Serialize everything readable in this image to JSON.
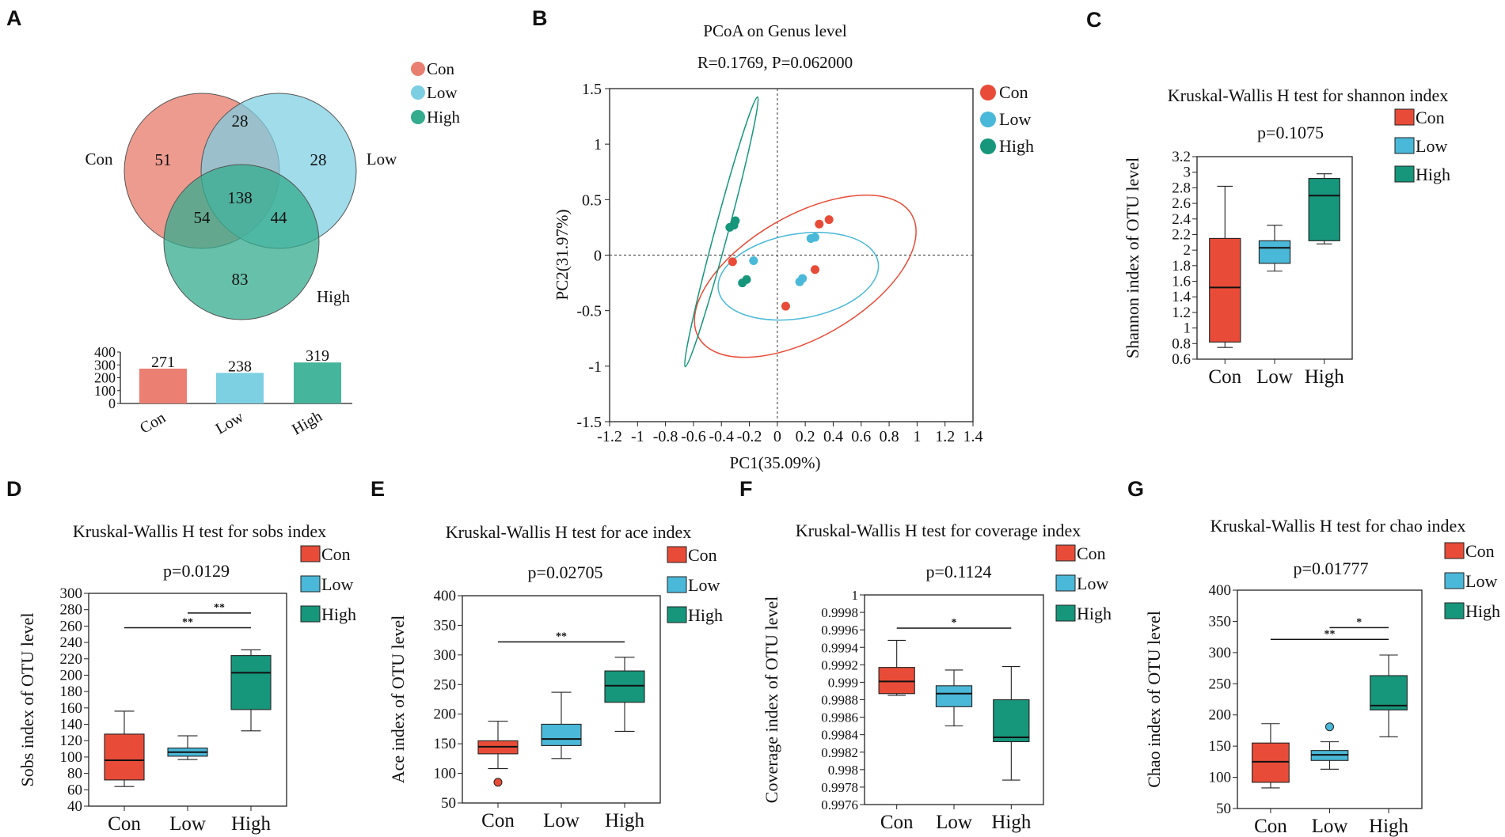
{
  "colors": {
    "con": "#e84c38",
    "low": "#4ab8d8",
    "high": "#16967a",
    "venn_con": "#e97f70",
    "venn_low": "#7ccfe2",
    "venn_high": "#34ac8d",
    "bar_con": "#eb7f72",
    "bar_low": "#7dcfe2",
    "bar_high": "#45b59b"
  },
  "panels": {
    "A": "A",
    "B": "B",
    "C": "C",
    "D": "D",
    "E": "E",
    "F": "F",
    "G": "G"
  },
  "groups": [
    "Con",
    "Low",
    "High"
  ],
  "chart_data": [
    {
      "panel": "A",
      "type": "venn",
      "sets": [
        "Con",
        "Low",
        "High"
      ],
      "regions": {
        "con_only": "51",
        "low_only": "28",
        "high_only": "83",
        "con_low": "28",
        "con_high": "54",
        "low_high": "44",
        "all": "138"
      },
      "set_labels": [
        "Con",
        "Low",
        "High"
      ],
      "legend": [
        "Con",
        "Low",
        "High"
      ],
      "bar": {
        "type": "bar",
        "categories": [
          "Con",
          "Low",
          "High"
        ],
        "values": [
          271,
          238,
          319
        ],
        "value_labels": [
          "271",
          "238",
          "319"
        ],
        "yticks": [
          "400",
          "300",
          "200",
          "100",
          "0"
        ],
        "ylim": [
          0,
          400
        ]
      }
    },
    {
      "panel": "B",
      "type": "scatter",
      "title": "PCoA on Genus level",
      "subtitle": "R=0.1769, P=0.062000",
      "xlabel": "PC1(35.09%)",
      "ylabel": "PC2(31.97%)",
      "xlim": [
        -1.2,
        1.4
      ],
      "ylim": [
        -1.5,
        1.5
      ],
      "xticks": [
        "-1.2",
        "-1",
        "-0.8",
        "-0.6",
        "-0.4",
        "-0.2",
        "0",
        "0.2",
        "0.4",
        "0.6",
        "0.8",
        "1",
        "1.2",
        "1.4"
      ],
      "yticks": [
        "1.5",
        "1",
        "0.5",
        "0",
        "-0.5",
        "-1",
        "-1.5"
      ],
      "legend": [
        "Con",
        "Low",
        "High"
      ],
      "series": [
        {
          "name": "Con",
          "points": [
            [
              0.3,
              0.28
            ],
            [
              0.37,
              0.32
            ],
            [
              0.27,
              -0.13
            ],
            [
              0.06,
              -0.46
            ],
            [
              -0.32,
              -0.06
            ]
          ]
        },
        {
          "name": "Low",
          "points": [
            [
              0.24,
              0.15
            ],
            [
              0.27,
              0.16
            ],
            [
              -0.17,
              -0.05
            ],
            [
              0.16,
              -0.24
            ],
            [
              0.18,
              -0.21
            ]
          ]
        },
        {
          "name": "High",
          "points": [
            [
              -0.34,
              0.25
            ],
            [
              -0.31,
              0.27
            ],
            [
              -0.3,
              0.31
            ],
            [
              -0.22,
              -0.22
            ],
            [
              -0.25,
              -0.25
            ]
          ]
        }
      ],
      "ellipses": [
        {
          "name": "Con",
          "center": [
            0.2,
            -0.19
          ],
          "rx": 0.88,
          "ry": 0.55,
          "angle_deg": -30
        },
        {
          "name": "Low",
          "center": [
            0.15,
            -0.19
          ],
          "rx": 0.58,
          "ry": 0.38,
          "angle_deg": -10
        },
        {
          "name": "High",
          "center": [
            -0.4,
            0.21
          ],
          "rx": 1.0,
          "ry": 0.06,
          "angle_deg": -75
        }
      ]
    },
    {
      "panel": "C",
      "type": "box",
      "title": "Kruskal-Wallis H test for shannon index",
      "pvalue": "p=0.1075",
      "ylabel": "Shannon index of OTU level",
      "categories": [
        "Con",
        "Low",
        "High"
      ],
      "ylim": [
        0.6,
        3.2
      ],
      "yticks": [
        "3.2",
        "3",
        "2.8",
        "2.6",
        "2.4",
        "2.2",
        "2",
        "1.8",
        "1.6",
        "1.4",
        "1.2",
        "1",
        "0.8",
        "0.6"
      ],
      "boxes": [
        {
          "name": "Con",
          "whisker_low": 0.75,
          "q1": 0.82,
          "median": 1.52,
          "q3": 2.15,
          "whisker_high": 2.82
        },
        {
          "name": "Low",
          "whisker_low": 1.73,
          "q1": 1.83,
          "median": 2.03,
          "q3": 2.12,
          "whisker_high": 2.32
        },
        {
          "name": "High",
          "whisker_low": 2.08,
          "q1": 2.12,
          "median": 2.7,
          "q3": 2.92,
          "whisker_high": 2.98
        }
      ],
      "outliers": [],
      "sig": []
    },
    {
      "panel": "D",
      "type": "box",
      "title": "Kruskal-Wallis H test for sobs index",
      "pvalue": "p=0.0129",
      "ylabel": "Sobs index of OTU level",
      "categories": [
        "Con",
        "Low",
        "High"
      ],
      "ylim": [
        40,
        300
      ],
      "yticks": [
        "300",
        "280",
        "260",
        "240",
        "220",
        "200",
        "180",
        "160",
        "140",
        "120",
        "100",
        "80",
        "60",
        "40"
      ],
      "boxes": [
        {
          "name": "Con",
          "whisker_low": 64,
          "q1": 72,
          "median": 96,
          "q3": 128,
          "whisker_high": 156
        },
        {
          "name": "Low",
          "whisker_low": 97,
          "q1": 101,
          "median": 106,
          "q3": 111,
          "whisker_high": 126
        },
        {
          "name": "High",
          "whisker_low": 132,
          "q1": 158,
          "median": 203,
          "q3": 224,
          "whisker_high": 231
        }
      ],
      "outliers": [],
      "sig": [
        {
          "from": 0,
          "to": 2,
          "y": 258,
          "label": "**"
        },
        {
          "from": 1,
          "to": 2,
          "y": 276,
          "label": "**"
        }
      ]
    },
    {
      "panel": "E",
      "type": "box",
      "title": "Kruskal-Wallis H test for ace index",
      "pvalue": "p=0.02705",
      "ylabel": "Ace index of OTU level",
      "categories": [
        "Con",
        "Low",
        "High"
      ],
      "ylim": [
        50,
        400
      ],
      "yticks": [
        "400",
        "350",
        "300",
        "250",
        "200",
        "150",
        "100",
        "50"
      ],
      "boxes": [
        {
          "name": "Con",
          "whisker_low": 108,
          "q1": 133,
          "median": 145,
          "q3": 155,
          "whisker_high": 188
        },
        {
          "name": "Low",
          "whisker_low": 125,
          "q1": 147,
          "median": 158,
          "q3": 183,
          "whisker_high": 237
        },
        {
          "name": "High",
          "whisker_low": 171,
          "q1": 220,
          "median": 248,
          "q3": 273,
          "whisker_high": 296
        }
      ],
      "outliers": [
        {
          "group": 0,
          "value": 85
        }
      ],
      "sig": [
        {
          "from": 0,
          "to": 2,
          "y": 322,
          "label": "**"
        }
      ]
    },
    {
      "panel": "F",
      "type": "box",
      "title": "Kruskal-Wallis H test for coverage index",
      "pvalue": "p=0.1124",
      "ylabel": "Coverage index of OTU level",
      "categories": [
        "Con",
        "Low",
        "High"
      ],
      "ylim": [
        0.9976,
        1.0
      ],
      "yticks": [
        "1",
        "0.9998",
        "0.9996",
        "0.9994",
        "0.9992",
        "0.999",
        "0.9988",
        "0.9986",
        "0.9984",
        "0.9982",
        "0.998",
        "0.9978",
        "0.9976"
      ],
      "boxes": [
        {
          "name": "Con",
          "whisker_low": 0.99885,
          "q1": 0.99887,
          "median": 0.99901,
          "q3": 0.99917,
          "whisker_high": 0.99948
        },
        {
          "name": "Low",
          "whisker_low": 0.9985,
          "q1": 0.99872,
          "median": 0.99887,
          "q3": 0.99896,
          "whisker_high": 0.99914
        },
        {
          "name": "High",
          "whisker_low": 0.99788,
          "q1": 0.99832,
          "median": 0.99837,
          "q3": 0.9988,
          "whisker_high": 0.99918
        }
      ],
      "outliers": [],
      "sig": [
        {
          "from": 0,
          "to": 2,
          "y": 0.99962,
          "label": "*"
        }
      ]
    },
    {
      "panel": "G",
      "type": "box",
      "title": "Kruskal-Wallis H test for chao index",
      "pvalue": "p=0.01777",
      "ylabel": "Chao index of OTU level",
      "categories": [
        "Con",
        "Low",
        "High"
      ],
      "ylim": [
        50,
        400
      ],
      "yticks": [
        "400",
        "350",
        "300",
        "250",
        "200",
        "150",
        "100",
        "50"
      ],
      "boxes": [
        {
          "name": "Con",
          "whisker_low": 83,
          "q1": 92,
          "median": 125,
          "q3": 155,
          "whisker_high": 186
        },
        {
          "name": "Low",
          "whisker_low": 113,
          "q1": 127,
          "median": 136,
          "q3": 143,
          "whisker_high": 157
        },
        {
          "name": "High",
          "whisker_low": 165,
          "q1": 208,
          "median": 215,
          "q3": 263,
          "whisker_high": 296
        }
      ],
      "outliers": [
        {
          "group": 1,
          "value": 181
        }
      ],
      "sig": [
        {
          "from": 0,
          "to": 2,
          "y": 321,
          "label": "**"
        },
        {
          "from": 1,
          "to": 2,
          "y": 340,
          "label": "*"
        }
      ]
    }
  ]
}
